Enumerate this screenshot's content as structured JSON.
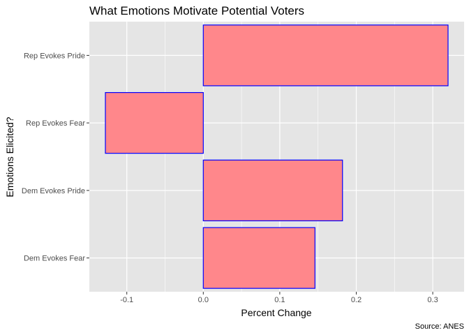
{
  "chart_data": {
    "type": "bar",
    "orientation": "horizontal",
    "title": "What Emotions Motivate Potential Voters",
    "xlabel": "Percent Change",
    "ylabel": "Emotions Elicited?",
    "caption": "Source: ANES",
    "categories": [
      "Dem Evokes Fear",
      "Dem Evokes Pride",
      "Rep Evokes Fear",
      "Rep Evokes Pride"
    ],
    "values": [
      0.146,
      0.182,
      -0.128,
      0.32
    ],
    "xlim": [
      -0.149,
      0.341
    ],
    "xticks": [
      -0.1,
      0.0,
      0.1,
      0.2,
      0.3
    ],
    "xtick_labels": [
      "-0.1",
      "0.0",
      "0.1",
      "0.2",
      "0.3"
    ],
    "grid": true,
    "colors": {
      "panel": "#e5e5e5",
      "grid_major": "#ffffff",
      "bar_fill": "#ff878b",
      "bar_outline": "#0000ff"
    }
  }
}
